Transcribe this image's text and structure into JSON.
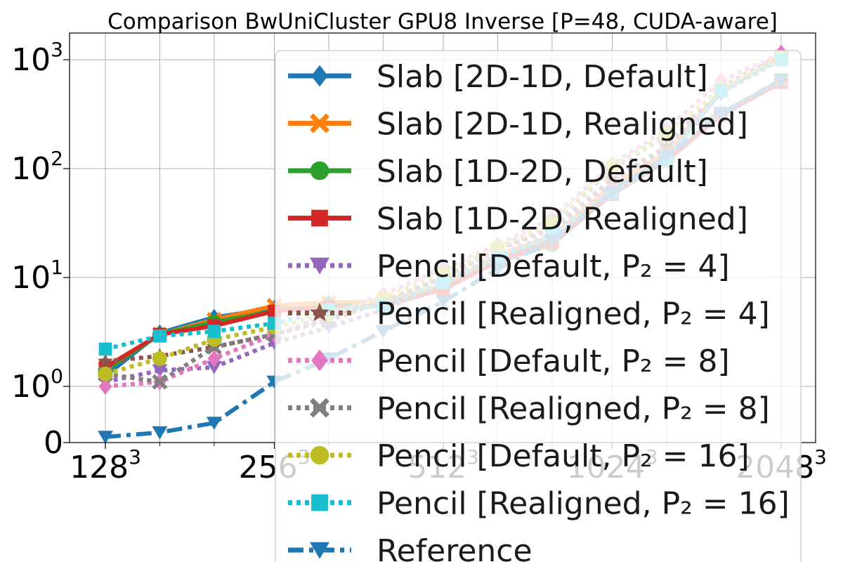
{
  "chart_data": {
    "type": "line",
    "title": "Comparison BwUniCluster GPU8 Inverse [P=48, CUDA-aware]",
    "xlabel": "",
    "ylabel": "",
    "x_scale": "log2",
    "y_scale": "symlog",
    "grid": true,
    "legend_placement": "upper right",
    "x": [
      128,
      160,
      200,
      256,
      320,
      400,
      512,
      640,
      800,
      1024,
      1280,
      1600,
      2048
    ],
    "x_tick_values": [
      128,
      256,
      512,
      1024,
      2048
    ],
    "x_tick_labels": [
      {
        "base": "128",
        "exp": "3"
      },
      {
        "base": "256",
        "exp": "3"
      },
      {
        "base": "512",
        "exp": "3"
      },
      {
        "base": "1024",
        "exp": "3"
      },
      {
        "base": "2048",
        "exp": "3"
      }
    ],
    "y_tick_values": [
      0,
      1,
      10,
      100,
      1000
    ],
    "y_tick_labels": [
      {
        "base": "0",
        "exp": ""
      },
      {
        "base": "10",
        "exp": "0"
      },
      {
        "base": "10",
        "exp": "1"
      },
      {
        "base": "10",
        "exp": "2"
      },
      {
        "base": "10",
        "exp": "3"
      }
    ],
    "series": [
      {
        "name": "Slab [2D-1D, Default]",
        "color": "#1f77b4",
        "marker": "diamond",
        "style": "solid",
        "values": [
          1.25,
          3.1,
          4.3,
          5.2,
          5.8,
          5.5,
          8.0,
          15,
          22,
          65,
          130,
          500,
          1100
        ]
      },
      {
        "name": "Slab [2D-1D, Realigned]",
        "color": "#ff7f0e",
        "marker": "x",
        "style": "solid",
        "values": [
          1.45,
          3.0,
          4.1,
          5.5,
          5.9,
          6.0,
          8.5,
          16,
          24,
          70,
          140,
          520,
          1050
        ]
      },
      {
        "name": "Slab [1D-2D, Default]",
        "color": "#2ca02c",
        "marker": "circle",
        "style": "solid",
        "values": [
          1.4,
          3.0,
          3.9,
          4.9,
          5.5,
          5.6,
          8.0,
          14,
          20,
          60,
          120,
          320,
          650
        ]
      },
      {
        "name": "Slab [1D-2D, Realigned]",
        "color": "#d62728",
        "marker": "square",
        "style": "solid",
        "values": [
          1.5,
          3.0,
          3.6,
          4.9,
          5.4,
          5.5,
          7.8,
          14,
          21,
          58,
          118,
          310,
          620
        ]
      },
      {
        "name": "Pencil [Default, P₂ = 4]",
        "color": "#9467bd",
        "marker": "triangle-down",
        "style": "dotted",
        "values": [
          1.1,
          1.4,
          1.5,
          2.5,
          3.5,
          5.0,
          9.0,
          16,
          25,
          75,
          150,
          500,
          1000
        ]
      },
      {
        "name": "Pencil [Realigned, P₂ = 4]",
        "color": "#8c564b",
        "marker": "star",
        "style": "dotted",
        "values": [
          1.7,
          1.9,
          2.3,
          3.0,
          4.2,
          6.0,
          10.0,
          18,
          28,
          80,
          160,
          560,
          1100
        ]
      },
      {
        "name": "Pencil [Default, P₂ = 8]",
        "color": "#e377c2",
        "marker": "diamond",
        "style": "dotted",
        "values": [
          1.0,
          1.1,
          1.8,
          3.0,
          4.5,
          7.0,
          12,
          20,
          35,
          110,
          230,
          640,
          1150
        ]
      },
      {
        "name": "Pencil [Realigned, P₂ = 8]",
        "color": "#7f7f7f",
        "marker": "x",
        "style": "dotted",
        "values": [
          1.3,
          1.1,
          2.3,
          3.0,
          4.0,
          6.0,
          10,
          18,
          30,
          100,
          200,
          320,
          650
        ]
      },
      {
        "name": "Pencil [Default, P₂ = 16]",
        "color": "#bcbd22",
        "marker": "circle",
        "style": "dotted",
        "values": [
          1.3,
          1.8,
          2.7,
          3.5,
          4.6,
          6.5,
          11,
          19,
          32,
          105,
          210,
          540,
          1050
        ]
      },
      {
        "name": "Pencil [Realigned, P₂ = 16]",
        "color": "#17becf",
        "marker": "square",
        "style": "dotted",
        "values": [
          2.2,
          2.9,
          3.2,
          3.8,
          5.0,
          5.5,
          9.0,
          15,
          25,
          60,
          120,
          520,
          1000
        ]
      },
      {
        "name": "Reference",
        "color": "#1f77b4",
        "marker": "triangle-down",
        "style": "dashdot",
        "values": [
          0.1,
          0.18,
          0.35,
          1.1,
          1.8,
          3.2,
          6.0,
          12,
          22,
          60,
          130,
          320,
          650
        ]
      }
    ]
  }
}
